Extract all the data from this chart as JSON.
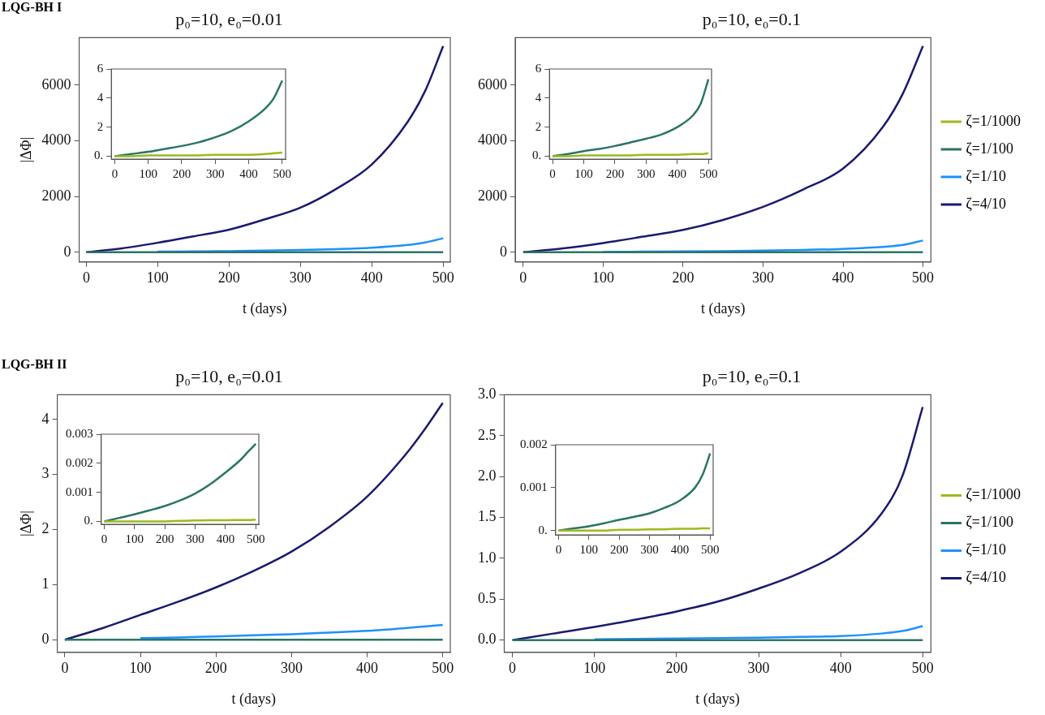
{
  "chart_data": [
    {
      "type": "line",
      "title": "p₀=10, e₀=0.01",
      "xlabel": "t (days)",
      "ylabel": "|ΔΦ|",
      "annotations": [
        "LQG-BH I"
      ],
      "x": [
        0,
        50,
        100,
        150,
        200,
        250,
        300,
        350,
        400,
        450,
        475,
        500
      ],
      "xlim": [
        -10,
        510
      ],
      "xticks": [
        0,
        100,
        200,
        300,
        400,
        500
      ],
      "ylim": [
        -350,
        7700
      ],
      "yticks": [
        0,
        2000,
        4000,
        6000
      ],
      "marker": "none",
      "line_style": "solid",
      "series": [
        {
          "color": "#2a7565",
          "values": [
            0,
            0,
            0,
            0,
            0,
            0,
            0,
            0,
            0,
            0,
            0,
            0
          ]
        },
        {
          "color": "#1e90ff",
          "values": [
            null,
            null,
            20,
            30,
            40,
            60,
            80,
            110,
            160,
            260,
            350,
            500
          ]
        },
        {
          "color": "#1a1a6e",
          "values": [
            0,
            140,
            340,
            570,
            810,
            1180,
            1600,
            2270,
            3150,
            4670,
            5800,
            7400
          ]
        }
      ]
    },
    {
      "type": "line",
      "x": [
        0,
        50,
        100,
        150,
        200,
        250,
        300,
        350,
        400,
        450,
        475,
        500
      ],
      "xlim": [
        -10,
        510
      ],
      "xticks": [
        0,
        100,
        200,
        300,
        400,
        500
      ],
      "ylim": [
        -0.2,
        6
      ],
      "yticks": [
        {
          "value": 0,
          "label": "0."
        },
        2,
        4,
        6
      ],
      "marker": "none",
      "line_style": "solid",
      "series": [
        {
          "color": "#9bbb1c",
          "values": [
            0,
            0,
            0.05,
            0.05,
            0.05,
            0.05,
            0.1,
            0.1,
            0.1,
            0.15,
            0.2,
            0.25
          ]
        },
        {
          "color": "#2a7565",
          "values": [
            0,
            0.15,
            0.3,
            0.5,
            0.7,
            0.95,
            1.3,
            1.75,
            2.4,
            3.3,
            4.0,
            5.2
          ]
        }
      ]
    },
    {
      "type": "line",
      "title": "p₀=10, e₀=0.1",
      "xlabel": "t (days)",
      "legend": "right",
      "x": [
        0,
        50,
        100,
        150,
        200,
        250,
        300,
        350,
        400,
        450,
        475,
        500
      ],
      "xlim": [
        -10,
        510
      ],
      "xticks": [
        0,
        100,
        200,
        300,
        400,
        500
      ],
      "ylim": [
        -350,
        7700
      ],
      "yticks": [
        0,
        2000,
        4000,
        6000
      ],
      "marker": "none",
      "line_style": "solid",
      "series": [
        {
          "name": "ζ=1/1000",
          "color": "#9bbb1c",
          "values": [
            null,
            null,
            null,
            null,
            null,
            null,
            null,
            null,
            null,
            null,
            null,
            null
          ]
        },
        {
          "name": "ζ=1/100",
          "color": "#2a7565",
          "values": [
            0,
            0,
            0,
            0,
            0,
            0,
            0,
            0,
            0,
            0,
            0,
            0
          ]
        },
        {
          "name": "ζ=1/10",
          "color": "#1e90ff",
          "values": [
            null,
            null,
            10,
            20,
            30,
            40,
            60,
            80,
            120,
            190,
            260,
            420
          ]
        },
        {
          "name": "ζ=4/10",
          "color": "#1a1a6e",
          "values": [
            0,
            140,
            330,
            560,
            800,
            1160,
            1630,
            2250,
            3000,
            4500,
            5700,
            7400
          ]
        }
      ]
    },
    {
      "type": "line",
      "x": [
        0,
        50,
        100,
        150,
        200,
        250,
        300,
        350,
        400,
        450,
        475,
        500
      ],
      "xlim": [
        -10,
        510
      ],
      "xticks": [
        0,
        100,
        200,
        300,
        400,
        500
      ],
      "ylim": [
        -0.2,
        6
      ],
      "yticks": [
        {
          "value": 0,
          "label": "0."
        },
        2,
        4,
        6
      ],
      "marker": "none",
      "line_style": "solid",
      "series": [
        {
          "color": "#9bbb1c",
          "values": [
            0,
            0,
            0.05,
            0.05,
            0.05,
            0.05,
            0.1,
            0.1,
            0.1,
            0.15,
            0.15,
            0.2
          ]
        },
        {
          "color": "#2a7565",
          "values": [
            0,
            0.15,
            0.35,
            0.5,
            0.7,
            0.95,
            1.2,
            1.5,
            2.0,
            2.8,
            3.6,
            5.3
          ]
        }
      ]
    },
    {
      "type": "line",
      "title": "p₀=10, e₀=0.01",
      "xlabel": "t (days)",
      "ylabel": "|ΔΦ|",
      "annotations": [
        "LQG-BH II"
      ],
      "x": [
        0,
        50,
        100,
        150,
        200,
        250,
        300,
        350,
        400,
        450,
        475,
        500
      ],
      "xlim": [
        -10,
        510
      ],
      "xticks": [
        0,
        100,
        200,
        300,
        400,
        500
      ],
      "ylim": [
        -0.23,
        4.45
      ],
      "yticks": [
        0,
        1,
        2,
        3,
        4
      ],
      "marker": "none",
      "line_style": "solid",
      "series": [
        {
          "color": "#2a7565",
          "values": [
            0,
            0,
            0,
            0,
            0,
            0,
            0,
            0,
            0,
            0,
            0,
            0
          ]
        },
        {
          "color": "#1e90ff",
          "values": [
            null,
            null,
            0.03,
            0.04,
            0.06,
            0.08,
            0.1,
            0.13,
            0.16,
            0.21,
            0.24,
            0.27
          ]
        },
        {
          "color": "#1a1a6e",
          "values": [
            0,
            0.21,
            0.45,
            0.69,
            0.95,
            1.25,
            1.6,
            2.05,
            2.6,
            3.35,
            3.8,
            4.3
          ]
        }
      ]
    },
    {
      "type": "line",
      "x": [
        0,
        50,
        100,
        150,
        200,
        250,
        300,
        350,
        400,
        450,
        475,
        500
      ],
      "xlim": [
        -10,
        510
      ],
      "xticks": [
        0,
        100,
        200,
        300,
        400,
        500
      ],
      "ylim": [
        -0.0001,
        0.003
      ],
      "yticks": [
        {
          "value": 0,
          "label": "0."
        },
        0.001,
        0.002,
        0.003
      ],
      "marker": "none",
      "line_style": "solid",
      "series": [
        {
          "color": "#9bbb1c",
          "values": [
            0,
            0,
            0,
            0,
            0,
            2e-05,
            3e-05,
            4e-05,
            4e-05,
            5e-05,
            5e-05,
            6e-05
          ]
        },
        {
          "color": "#2a7565",
          "values": [
            0,
            0.00012,
            0.00024,
            0.00038,
            0.00053,
            0.00072,
            0.00096,
            0.00128,
            0.00168,
            0.00212,
            0.0024,
            0.00267
          ]
        }
      ]
    },
    {
      "type": "line",
      "title": "p₀=10, e₀=0.1",
      "xlabel": "t (days)",
      "legend": "right",
      "x": [
        0,
        50,
        100,
        150,
        200,
        250,
        300,
        350,
        400,
        450,
        475,
        500
      ],
      "xlim": [
        -10,
        510
      ],
      "xticks": [
        0,
        100,
        200,
        300,
        400,
        500
      ],
      "ylim": [
        -0.15,
        3.0
      ],
      "yticks": [
        {
          "value": 0,
          "label": "0.0"
        },
        0.5,
        {
          "value": 1,
          "label": "1.0"
        },
        1.5,
        {
          "value": 2,
          "label": "2.0"
        },
        2.5,
        {
          "value": 3,
          "label": "3.0"
        }
      ],
      "marker": "none",
      "line_style": "solid",
      "series": [
        {
          "name": "ζ=1/1000",
          "color": "#9bbb1c",
          "values": [
            null,
            null,
            null,
            null,
            null,
            null,
            null,
            null,
            null,
            null,
            null,
            null
          ]
        },
        {
          "name": "ζ=1/100",
          "color": "#2a7565",
          "values": [
            0,
            0,
            0,
            0,
            0,
            0,
            0,
            0,
            0,
            0,
            0,
            0
          ]
        },
        {
          "name": "ζ=1/10",
          "color": "#1e90ff",
          "values": [
            null,
            null,
            0.01,
            0.015,
            0.02,
            0.025,
            0.03,
            0.04,
            0.05,
            0.08,
            0.11,
            0.17
          ]
        },
        {
          "name": "ζ=4/10",
          "color": "#1a1a6e",
          "values": [
            0,
            0.08,
            0.16,
            0.25,
            0.35,
            0.47,
            0.63,
            0.82,
            1.08,
            1.55,
            2.0,
            2.85
          ]
        }
      ]
    },
    {
      "type": "line",
      "x": [
        0,
        50,
        100,
        150,
        200,
        250,
        300,
        350,
        400,
        450,
        475,
        500
      ],
      "xlim": [
        -10,
        510
      ],
      "xticks": [
        0,
        100,
        200,
        300,
        400,
        500
      ],
      "ylim": [
        -0.0001,
        0.002
      ],
      "yticks": [
        {
          "value": 0,
          "label": "0."
        },
        0.001,
        0.002
      ],
      "marker": "none",
      "line_style": "solid",
      "series": [
        {
          "color": "#9bbb1c",
          "values": [
            0,
            0,
            0,
            0,
            2e-05,
            2e-05,
            3e-05,
            3e-05,
            4e-05,
            4e-05,
            5e-05,
            5e-05
          ]
        },
        {
          "color": "#2a7565",
          "values": [
            0,
            5e-05,
            0.0001,
            0.00017,
            0.00025,
            0.00032,
            0.0004,
            0.00053,
            0.0007,
            0.001,
            0.0013,
            0.0018
          ]
        }
      ]
    }
  ]
}
